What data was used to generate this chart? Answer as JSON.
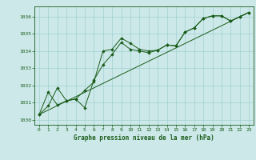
{
  "title": "Graphe pression niveau de la mer (hPa)",
  "bg_color": "#cce8e8",
  "grid_color": "#99cccc",
  "line_color": "#1a5c1a",
  "marker_color": "#1a5c1a",
  "xlim": [
    -0.5,
    23.5
  ],
  "ylim": [
    1029.7,
    1036.6
  ],
  "yticks": [
    1030,
    1031,
    1032,
    1033,
    1034,
    1035,
    1036
  ],
  "xticks": [
    0,
    1,
    2,
    3,
    4,
    5,
    6,
    7,
    8,
    9,
    10,
    11,
    12,
    13,
    14,
    15,
    16,
    17,
    18,
    19,
    20,
    21,
    22,
    23
  ],
  "series1_x": [
    0,
    1,
    2,
    3,
    4,
    5,
    6,
    7,
    8,
    9,
    10,
    11,
    12,
    13,
    14,
    15,
    16,
    17,
    18,
    19,
    20,
    21,
    22,
    23
  ],
  "series1_y": [
    1030.3,
    1031.6,
    1030.85,
    1031.1,
    1031.2,
    1031.7,
    1032.2,
    1034.0,
    1034.1,
    1034.75,
    1034.45,
    1034.1,
    1034.0,
    1034.05,
    1034.35,
    1034.3,
    1035.1,
    1035.35,
    1035.9,
    1036.05,
    1036.05,
    1035.75,
    1036.0,
    1036.25
  ],
  "series2_x": [
    0,
    1,
    2,
    3,
    4,
    5,
    6,
    7,
    8,
    9,
    10,
    11,
    12,
    13,
    14,
    15,
    16,
    17,
    18,
    19,
    20,
    21,
    22,
    23
  ],
  "series2_y": [
    1030.3,
    1030.8,
    1031.85,
    1031.1,
    1031.2,
    1030.7,
    1032.3,
    1033.2,
    1033.8,
    1034.5,
    1034.1,
    1034.0,
    1033.9,
    1034.05,
    1034.35,
    1034.3,
    1035.1,
    1035.35,
    1035.9,
    1036.05,
    1036.05,
    1035.75,
    1036.0,
    1036.25
  ],
  "series3_x": [
    0,
    23
  ],
  "series3_y": [
    1030.3,
    1036.25
  ]
}
